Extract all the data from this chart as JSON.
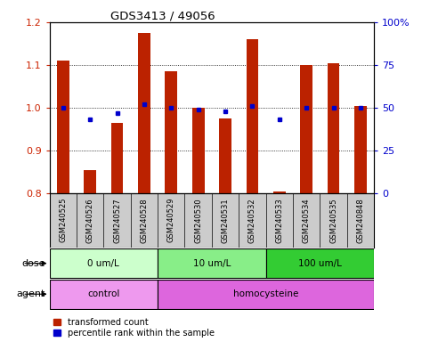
{
  "title": "GDS3413 / 49056",
  "samples": [
    "GSM240525",
    "GSM240526",
    "GSM240527",
    "GSM240528",
    "GSM240529",
    "GSM240530",
    "GSM240531",
    "GSM240532",
    "GSM240533",
    "GSM240534",
    "GSM240535",
    "GSM240848"
  ],
  "transformed_count": [
    1.11,
    0.855,
    0.965,
    1.175,
    1.085,
    1.0,
    0.975,
    1.16,
    0.805,
    1.1,
    1.105,
    1.005
  ],
  "percentile_rank": [
    50,
    43,
    47,
    52,
    50,
    49,
    48,
    51,
    43,
    50,
    50,
    50
  ],
  "ylim_left": [
    0.8,
    1.2
  ],
  "ylim_right": [
    0,
    100
  ],
  "yticks_left": [
    0.8,
    0.9,
    1.0,
    1.1,
    1.2
  ],
  "yticks_right": [
    0,
    25,
    50,
    75,
    100
  ],
  "bar_color": "#bb2200",
  "dot_color": "#0000cc",
  "dose_groups": [
    {
      "label": "0 um/L",
      "start": 0,
      "end": 4,
      "color": "#ccffcc"
    },
    {
      "label": "10 um/L",
      "start": 4,
      "end": 8,
      "color": "#88ee88"
    },
    {
      "label": "100 um/L",
      "start": 8,
      "end": 12,
      "color": "#33cc33"
    }
  ],
  "agent_groups": [
    {
      "label": "control",
      "start": 0,
      "end": 4,
      "color": "#ee99ee"
    },
    {
      "label": "homocysteine",
      "start": 4,
      "end": 12,
      "color": "#dd66dd"
    }
  ],
  "legend_red": "transformed count",
  "legend_blue": "percentile rank within the sample",
  "dose_label": "dose",
  "agent_label": "agent",
  "tick_color_left": "#cc2200",
  "tick_color_right": "#0000cc",
  "bg": "#ffffff",
  "xlabels_bg": "#cccccc"
}
